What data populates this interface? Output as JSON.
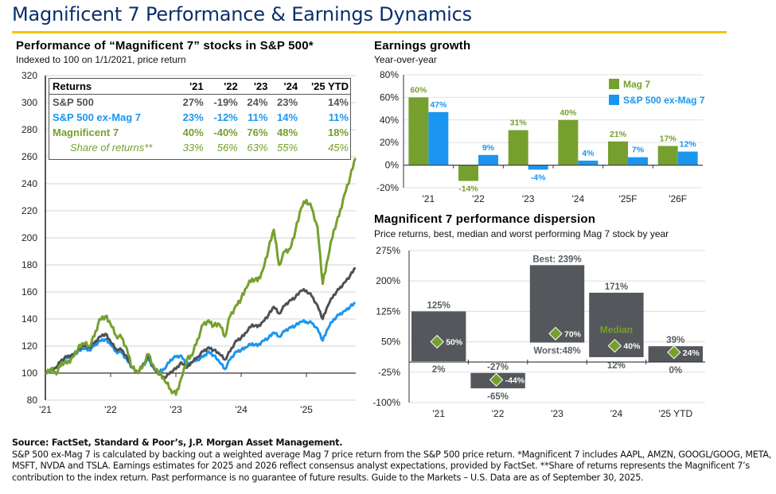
{
  "header": {
    "title": "Magnificent 7 Performance & Earnings Dynamics"
  },
  "colors": {
    "title_navy": "#0b2f6b",
    "accent_yellow": "#f5c400",
    "mag7_green": "#76a02e",
    "ex_mag7_blue": "#1a96f0",
    "sp500_gray": "#4d5054",
    "dispersion_bar": "#54575b"
  },
  "returns_table": {
    "headers": [
      "Returns",
      "'21",
      "'22",
      "'23",
      "'24",
      "'25 YTD"
    ],
    "rows": [
      {
        "label": "S&P 500",
        "values": [
          "27%",
          "-19%",
          "24%",
          "23%",
          "14%"
        ],
        "color": "#555555"
      },
      {
        "label": "S&P 500 ex-Mag 7",
        "values": [
          "23%",
          "-12%",
          "11%",
          "14%",
          "11%"
        ],
        "color": "#1a96f0"
      },
      {
        "label": "Magnificent 7",
        "values": [
          "40%",
          "-40%",
          "76%",
          "48%",
          "18%"
        ],
        "color": "#76a02e"
      },
      {
        "label": "Share of returns**",
        "values": [
          "33%",
          "56%",
          "63%",
          "55%",
          "45%"
        ],
        "color": "#76a02e"
      }
    ]
  },
  "chart_data": [
    {
      "type": "line",
      "title": "Performance of “Magnificent 7” stocks in S&P 500*",
      "subtitle": "Indexed to 100 on 1/1/2021, price return",
      "xlabel": "",
      "ylabel": "",
      "xlim": [
        2021.0,
        2025.75
      ],
      "ylim": [
        80,
        320
      ],
      "y_ticks": [
        80,
        100,
        120,
        140,
        160,
        180,
        200,
        220,
        240,
        260,
        280,
        300,
        320
      ],
      "y_tick_labels": [
        "80",
        "100",
        "120",
        "140",
        "160",
        "180",
        "200",
        "220",
        "240",
        "260",
        "280",
        "300",
        "320"
      ],
      "x_ticks": [
        2021,
        2022,
        2023,
        2024,
        2025
      ],
      "x_tick_labels": [
        "'21",
        "'22",
        "'23",
        "'24",
        "'25"
      ],
      "grid": true,
      "x": [
        2021.0,
        2021.08,
        2021.17,
        2021.25,
        2021.33,
        2021.42,
        2021.5,
        2021.58,
        2021.67,
        2021.75,
        2021.83,
        2021.92,
        2022.0,
        2022.08,
        2022.17,
        2022.25,
        2022.33,
        2022.42,
        2022.5,
        2022.58,
        2022.67,
        2022.75,
        2022.83,
        2022.92,
        2023.0,
        2023.08,
        2023.17,
        2023.25,
        2023.33,
        2023.42,
        2023.5,
        2023.58,
        2023.67,
        2023.75,
        2023.83,
        2023.92,
        2024.0,
        2024.08,
        2024.17,
        2024.25,
        2024.33,
        2024.42,
        2024.5,
        2024.58,
        2024.67,
        2024.75,
        2024.83,
        2024.92,
        2025.0,
        2025.08,
        2025.17,
        2025.25,
        2025.33,
        2025.42,
        2025.5,
        2025.58,
        2025.67,
        2025.75
      ],
      "series": [
        {
          "name": "Magnificent 7",
          "color": "#76a02e",
          "values": [
            100,
            103,
            99,
            108,
            107,
            112,
            118,
            122,
            120,
            127,
            140,
            142,
            136,
            128,
            126,
            118,
            104,
            100,
            106,
            114,
            104,
            100,
            94,
            88,
            84,
            96,
            110,
            113,
            125,
            136,
            139,
            135,
            136,
            127,
            142,
            150,
            155,
            163,
            170,
            168,
            176,
            192,
            206,
            180,
            190,
            192,
            205,
            222,
            228,
            222,
            208,
            166,
            185,
            206,
            216,
            232,
            245,
            259
          ]
        },
        {
          "name": "S&P 500",
          "color": "#4d5054",
          "values": [
            100,
            102,
            104,
            110,
            112,
            114,
            117,
            120,
            119,
            122,
            127,
            129,
            123,
            118,
            117,
            112,
            104,
            100,
            107,
            112,
            103,
            99,
            96,
            101,
            103,
            108,
            104,
            108,
            112,
            116,
            119,
            117,
            114,
            110,
            116,
            124,
            126,
            130,
            136,
            134,
            138,
            143,
            149,
            144,
            150,
            154,
            156,
            161,
            161,
            157,
            150,
            140,
            150,
            158,
            162,
            167,
            172,
            178
          ]
        },
        {
          "name": "S&P 500 ex-Mag 7",
          "color": "#1a96f0",
          "values": [
            100,
            102,
            104,
            110,
            111,
            113,
            116,
            118,
            117,
            120,
            124,
            125,
            121,
            116,
            115,
            110,
            104,
            100,
            106,
            110,
            103,
            101,
            103,
            110,
            112,
            113,
            106,
            108,
            110,
            112,
            116,
            113,
            108,
            103,
            110,
            116,
            117,
            119,
            122,
            120,
            124,
            126,
            130,
            127,
            131,
            134,
            135,
            138,
            138,
            137,
            133,
            124,
            133,
            140,
            143,
            146,
            149,
            152
          ]
        }
      ]
    },
    {
      "type": "bar",
      "title": "Earnings growth",
      "subtitle": "Year-over-year",
      "categories": [
        "'21",
        "'22",
        "'23",
        "'24",
        "'25F",
        "'26F"
      ],
      "ylim": [
        -20,
        80
      ],
      "y_ticks": [
        -20,
        0,
        20,
        40,
        60,
        80
      ],
      "y_tick_labels": [
        "-20%",
        "0%",
        "20%",
        "40%",
        "60%",
        "80%"
      ],
      "grid": true,
      "legend_position": "top-right",
      "series": [
        {
          "name": "Mag 7",
          "color": "#76a02e",
          "values": [
            60,
            -14,
            31,
            40,
            21,
            17
          ],
          "labels": [
            "60%",
            "-14%",
            "31%",
            "40%",
            "21%",
            "17%"
          ]
        },
        {
          "name": "S&P 500 ex-Mag 7",
          "color": "#1a96f0",
          "values": [
            47,
            9,
            -4,
            4,
            7,
            12
          ],
          "labels": [
            "47%",
            "9%",
            "-4%",
            "4%",
            "7%",
            "12%"
          ]
        }
      ]
    },
    {
      "type": "bar",
      "subtype": "floating-range",
      "title": "Magnificent 7 performance dispersion",
      "subtitle": "Price returns, best, median and worst performing Mag 7 stock by year",
      "categories": [
        "'21",
        "'22",
        "'23",
        "'24",
        "'25 YTD"
      ],
      "ylim": [
        -100,
        275
      ],
      "y_ticks": [
        -100,
        -25,
        50,
        125,
        200,
        275
      ],
      "y_tick_labels": [
        "-100%",
        "-25%",
        "50%",
        "125%",
        "200%",
        "275%"
      ],
      "grid": true,
      "best": [
        125,
        -27,
        239,
        171,
        39
      ],
      "median": [
        50,
        -44,
        70,
        40,
        24
      ],
      "worst": [
        2,
        -65,
        48,
        12,
        0
      ],
      "best_labels": [
        "125%",
        "-27%",
        "Best:  239%",
        "171%",
        "39%"
      ],
      "median_labels": [
        "50%",
        "-44%",
        "70%",
        "40%",
        "24%"
      ],
      "worst_labels": [
        "2%",
        "-65%",
        "Worst:48%",
        "12%",
        "0%"
      ],
      "annotations": [
        {
          "text": "Median",
          "category": "'24",
          "color": "#76a02e"
        }
      ]
    }
  ],
  "footer": {
    "source": "Source: FactSet, Standard & Poor’s, J.P. Morgan Asset Management.",
    "notes": "S&P 500 ex-Mag 7 is calculated by backing out a weighted average Mag 7 price return from the S&P 500 price return. *Magnificent 7 includes AAPL, AMZN, GOOGL/GOOG, META, MSFT, NVDA and TSLA. Earnings estimates for 2025 and 2026 reflect consensus analyst expectations, provided by FactSet. **Share of returns represents the Magnificent 7’s contribution to the index return. Past performance is no guarantee of future results. Guide to the Markets – U.S. Data are as of September 30, 2025."
  }
}
